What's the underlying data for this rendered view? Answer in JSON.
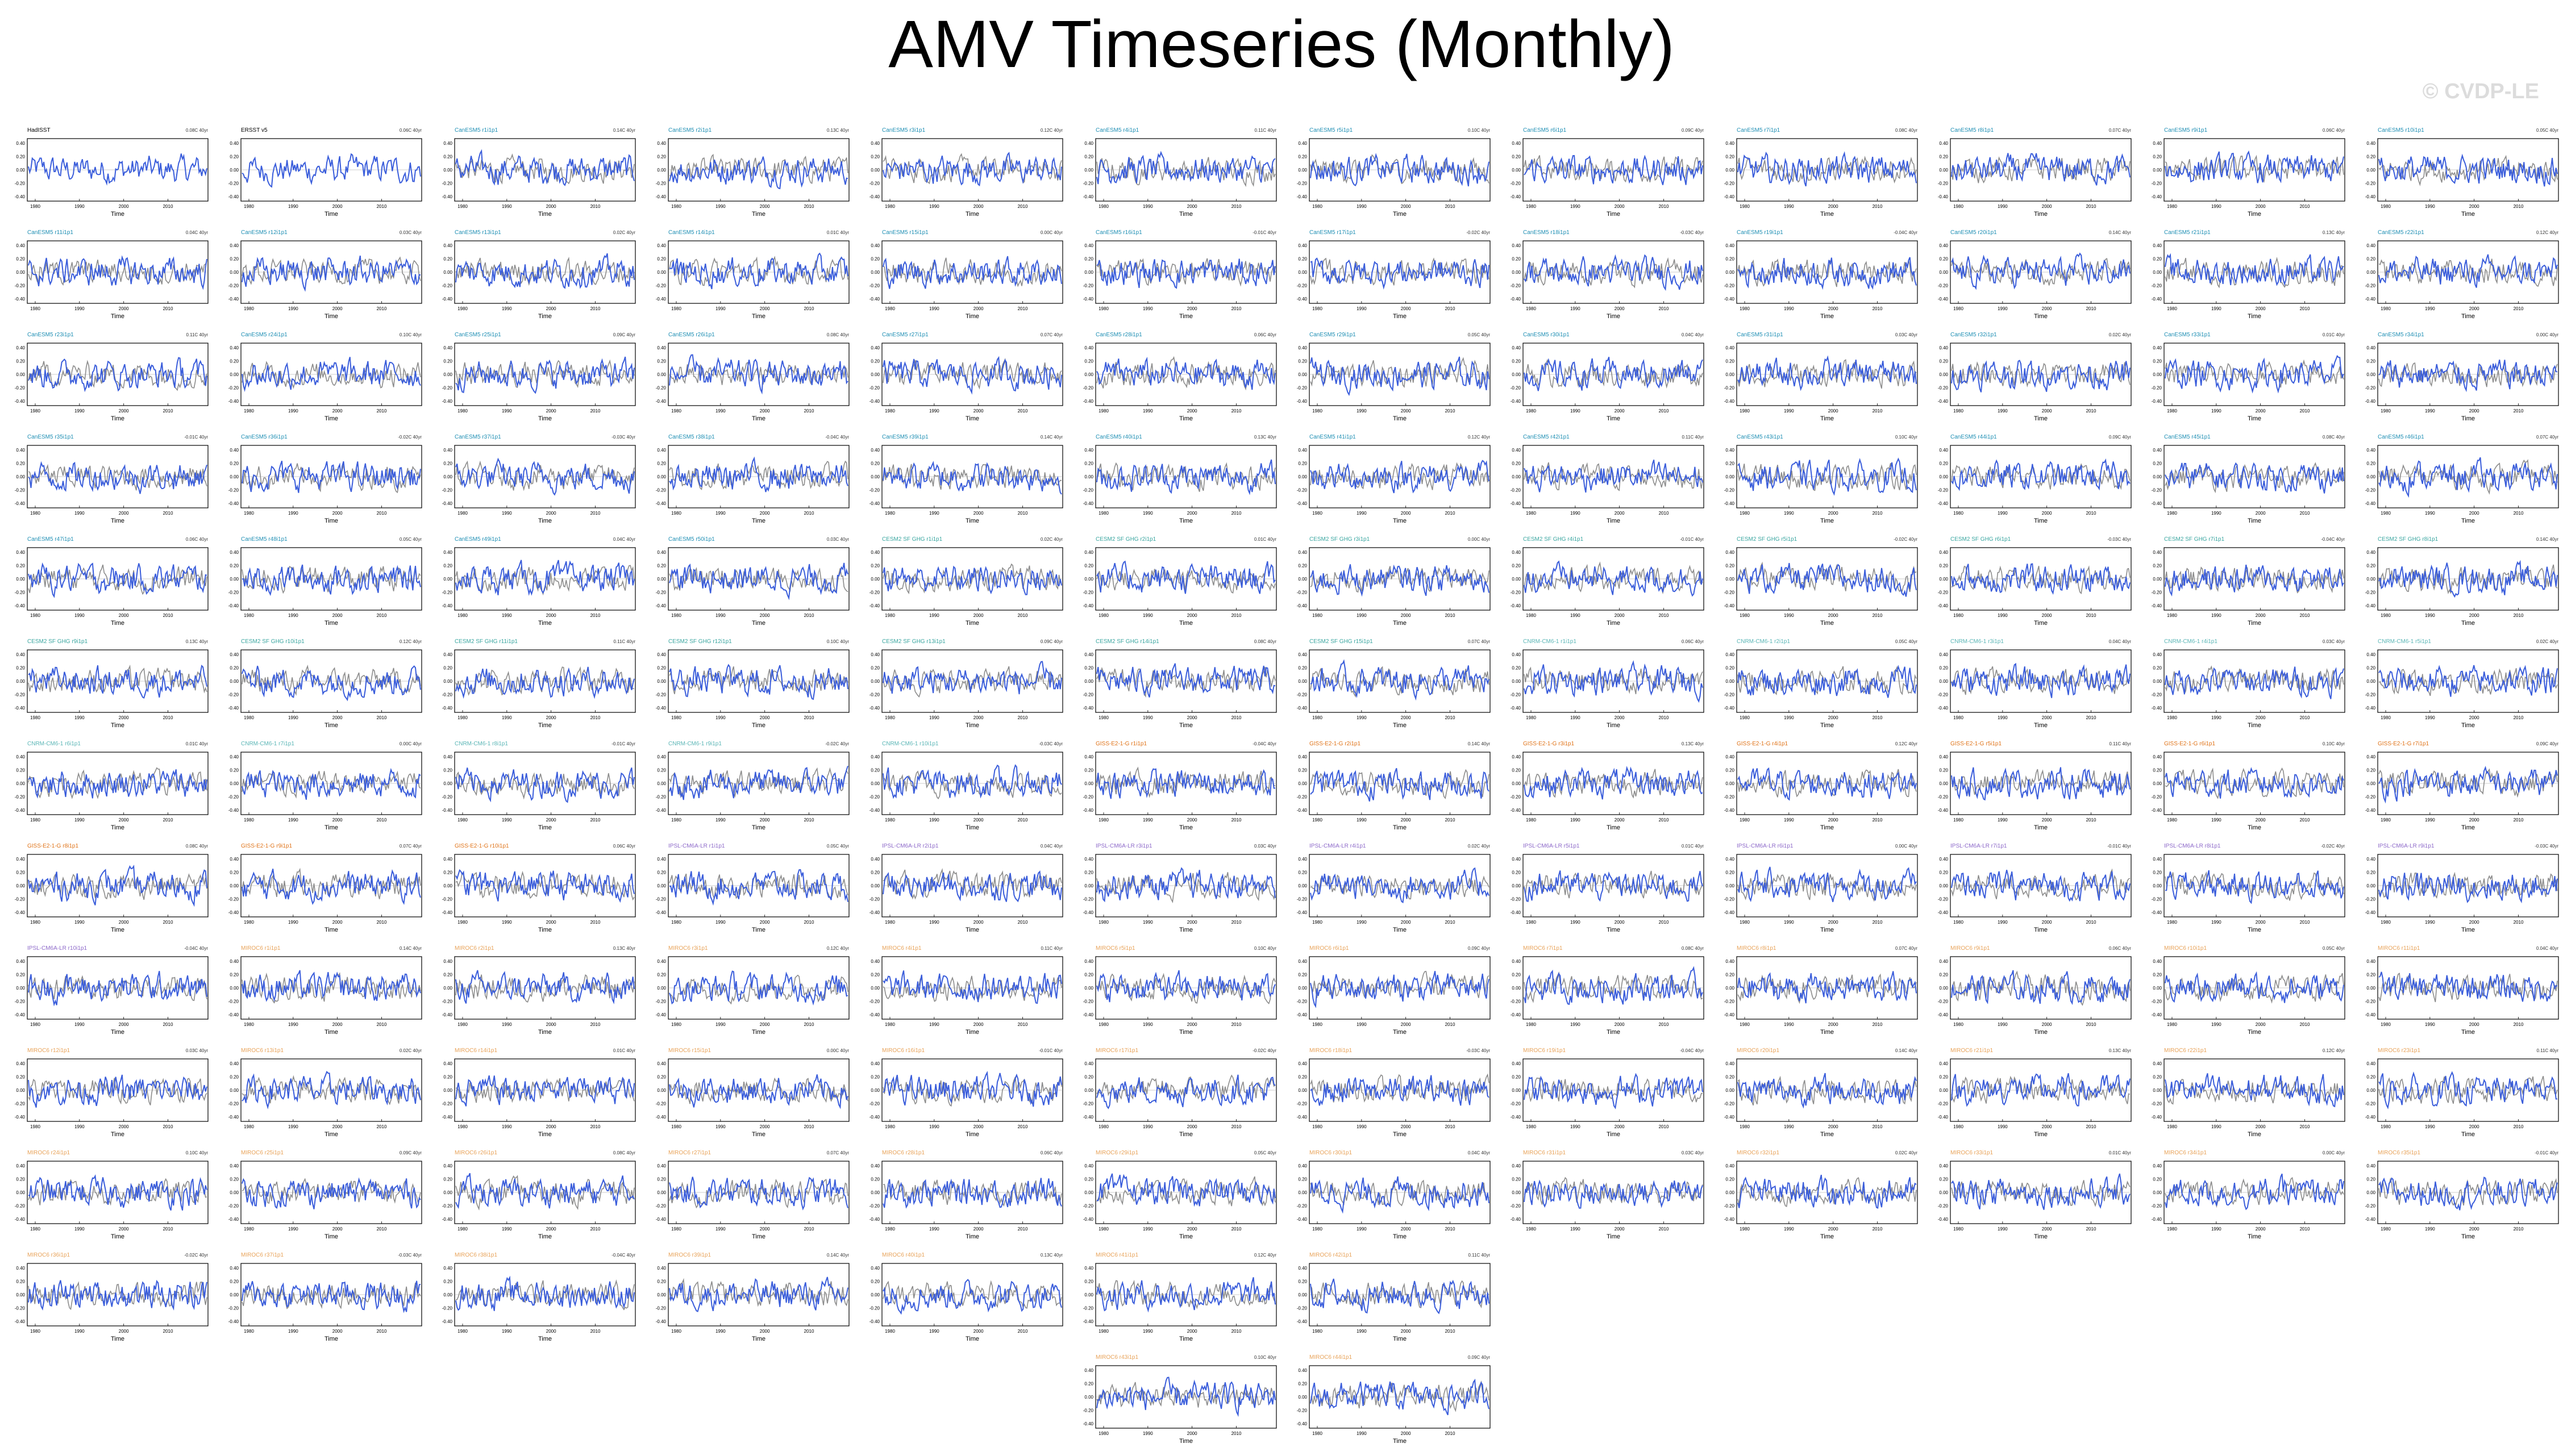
{
  "title": "AMV Timeseries (Monthly)",
  "watermark": "© CVDP-LE",
  "x_label": "Time",
  "x_ticks": [
    "1980",
    "1990",
    "2000",
    "2010"
  ],
  "y_ticks": [
    "0.40",
    "0.20",
    "0.00",
    "-0.20",
    "-0.40"
  ],
  "colors": {
    "model_line": "#3a5ddb",
    "obs_line": "#8c8c8c",
    "panel_border": "#000000"
  },
  "obs_panels": [
    {
      "label": "HadISST",
      "trend": "0.08C 40yr"
    },
    {
      "label": "ERSST v5",
      "trend": "0.06C 40yr"
    }
  ],
  "model_groups": [
    {
      "name": "CanESM5",
      "color": "#1f8fb4",
      "count": 50
    },
    {
      "name": "CESM2 SF GHG",
      "color": "#3aa6a0",
      "count": 15
    },
    {
      "name": "CNRM-CM6-1",
      "color": "#5bb6b6",
      "count": 10
    },
    {
      "name": "GISS-E2-1-G",
      "color": "#e0741a",
      "count": 10
    },
    {
      "name": "IPSL-CM6A-LR",
      "color": "#8d69c9",
      "count": 10
    },
    {
      "name": "MIROC6",
      "color": "#e8a35a",
      "count": 44
    }
  ],
  "layout_note_rows": 12,
  "layout_note_cols": 12,
  "chart_data": {
    "type": "line",
    "title": "AMV Timeseries (Monthly)",
    "xlabel": "Time",
    "ylabel": "",
    "xlim": [
      1979,
      2020
    ],
    "ylim": [
      -0.45,
      0.45
    ],
    "series_note": "Each panel shows a gray observed AMV curve and a blue ensemble member AMV curve (monthly, smoothed)",
    "panel_count": 141
  }
}
